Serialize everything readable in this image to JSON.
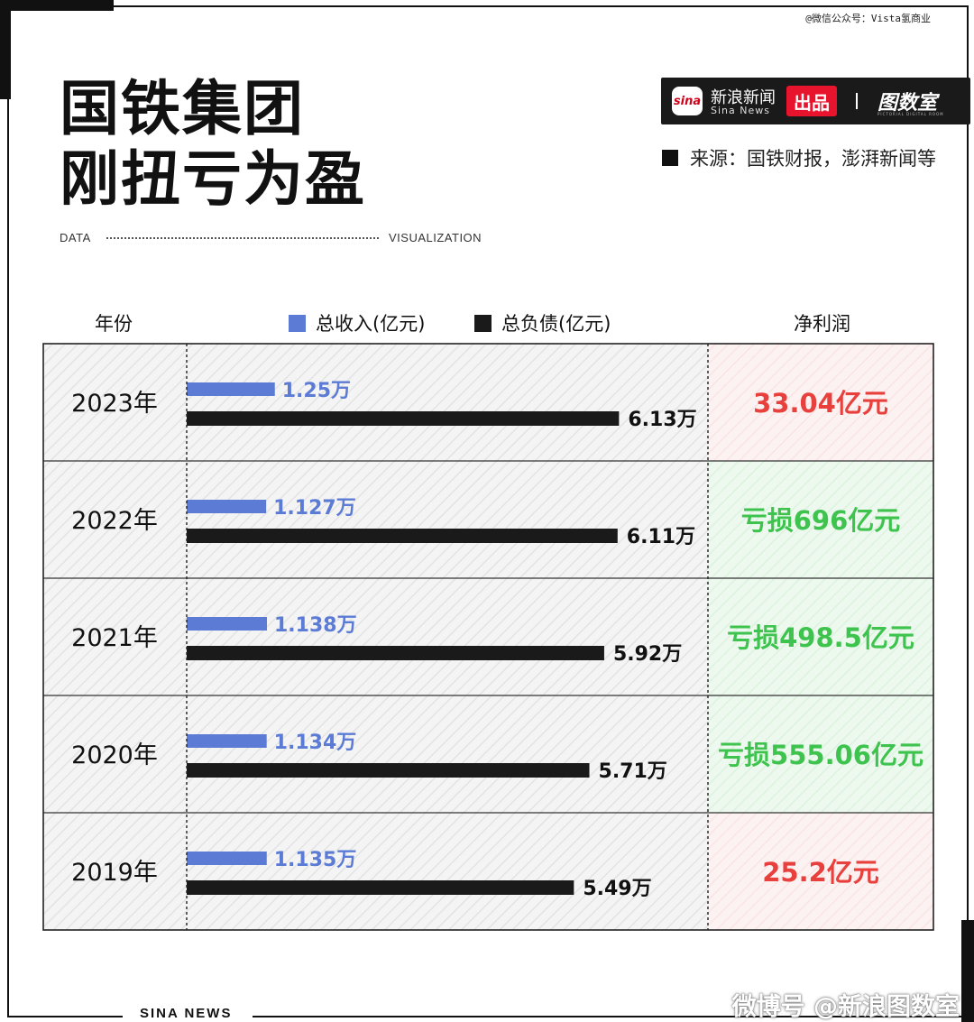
{
  "watermark_top": "@微信公众号：Vista氢商业",
  "title": {
    "line1": "国铁集团",
    "line2": "刚扭亏为盈"
  },
  "data_label_left": "DATA",
  "data_label_right": "VISUALIZATION",
  "logo": {
    "badge": "sina",
    "brand_cn": "新浪新闻",
    "brand_en": "Sina News",
    "chupin": "出品",
    "shuju": "图数室",
    "shuju_sub": "PICTORIAL DIGITAL ROOM"
  },
  "source": "来源：国铁财报，澎湃新闻等",
  "headers": {
    "year": "年份",
    "profit": "净利润"
  },
  "chart_data": {
    "type": "bar",
    "categories": [
      "2023年",
      "2022年",
      "2021年",
      "2020年",
      "2019年"
    ],
    "series": [
      {
        "name": "总收入(亿元)",
        "values": [
          1.25,
          1.127,
          1.138,
          1.134,
          1.135
        ],
        "labels": [
          "1.25万",
          "1.127万",
          "1.138万",
          "1.134万",
          "1.135万"
        ],
        "color": "#5b7bd5"
      },
      {
        "name": "总负债(亿元)",
        "values": [
          6.13,
          6.11,
          5.92,
          5.71,
          5.49
        ],
        "labels": [
          "6.13万",
          "6.11万",
          "5.92万",
          "5.71万",
          "5.49万"
        ],
        "color": "#1a1a1a"
      }
    ],
    "net_profit": [
      {
        "text": "33.04亿元",
        "status": "profit"
      },
      {
        "text": "亏损696亿元",
        "status": "loss"
      },
      {
        "text": "亏损498.5亿元",
        "status": "loss"
      },
      {
        "text": "亏损555.06亿元",
        "status": "loss"
      },
      {
        "text": "25.2亿元",
        "status": "profit"
      }
    ],
    "colors": {
      "profit_text": "#e8403c",
      "loss_text": "#3ec44e",
      "profit_bg": "#fdf0f0",
      "loss_bg": "#eaf8ec"
    }
  },
  "bottom_text": "SINA NEWS",
  "watermark_bottom": "微博号 @新浪图数室"
}
